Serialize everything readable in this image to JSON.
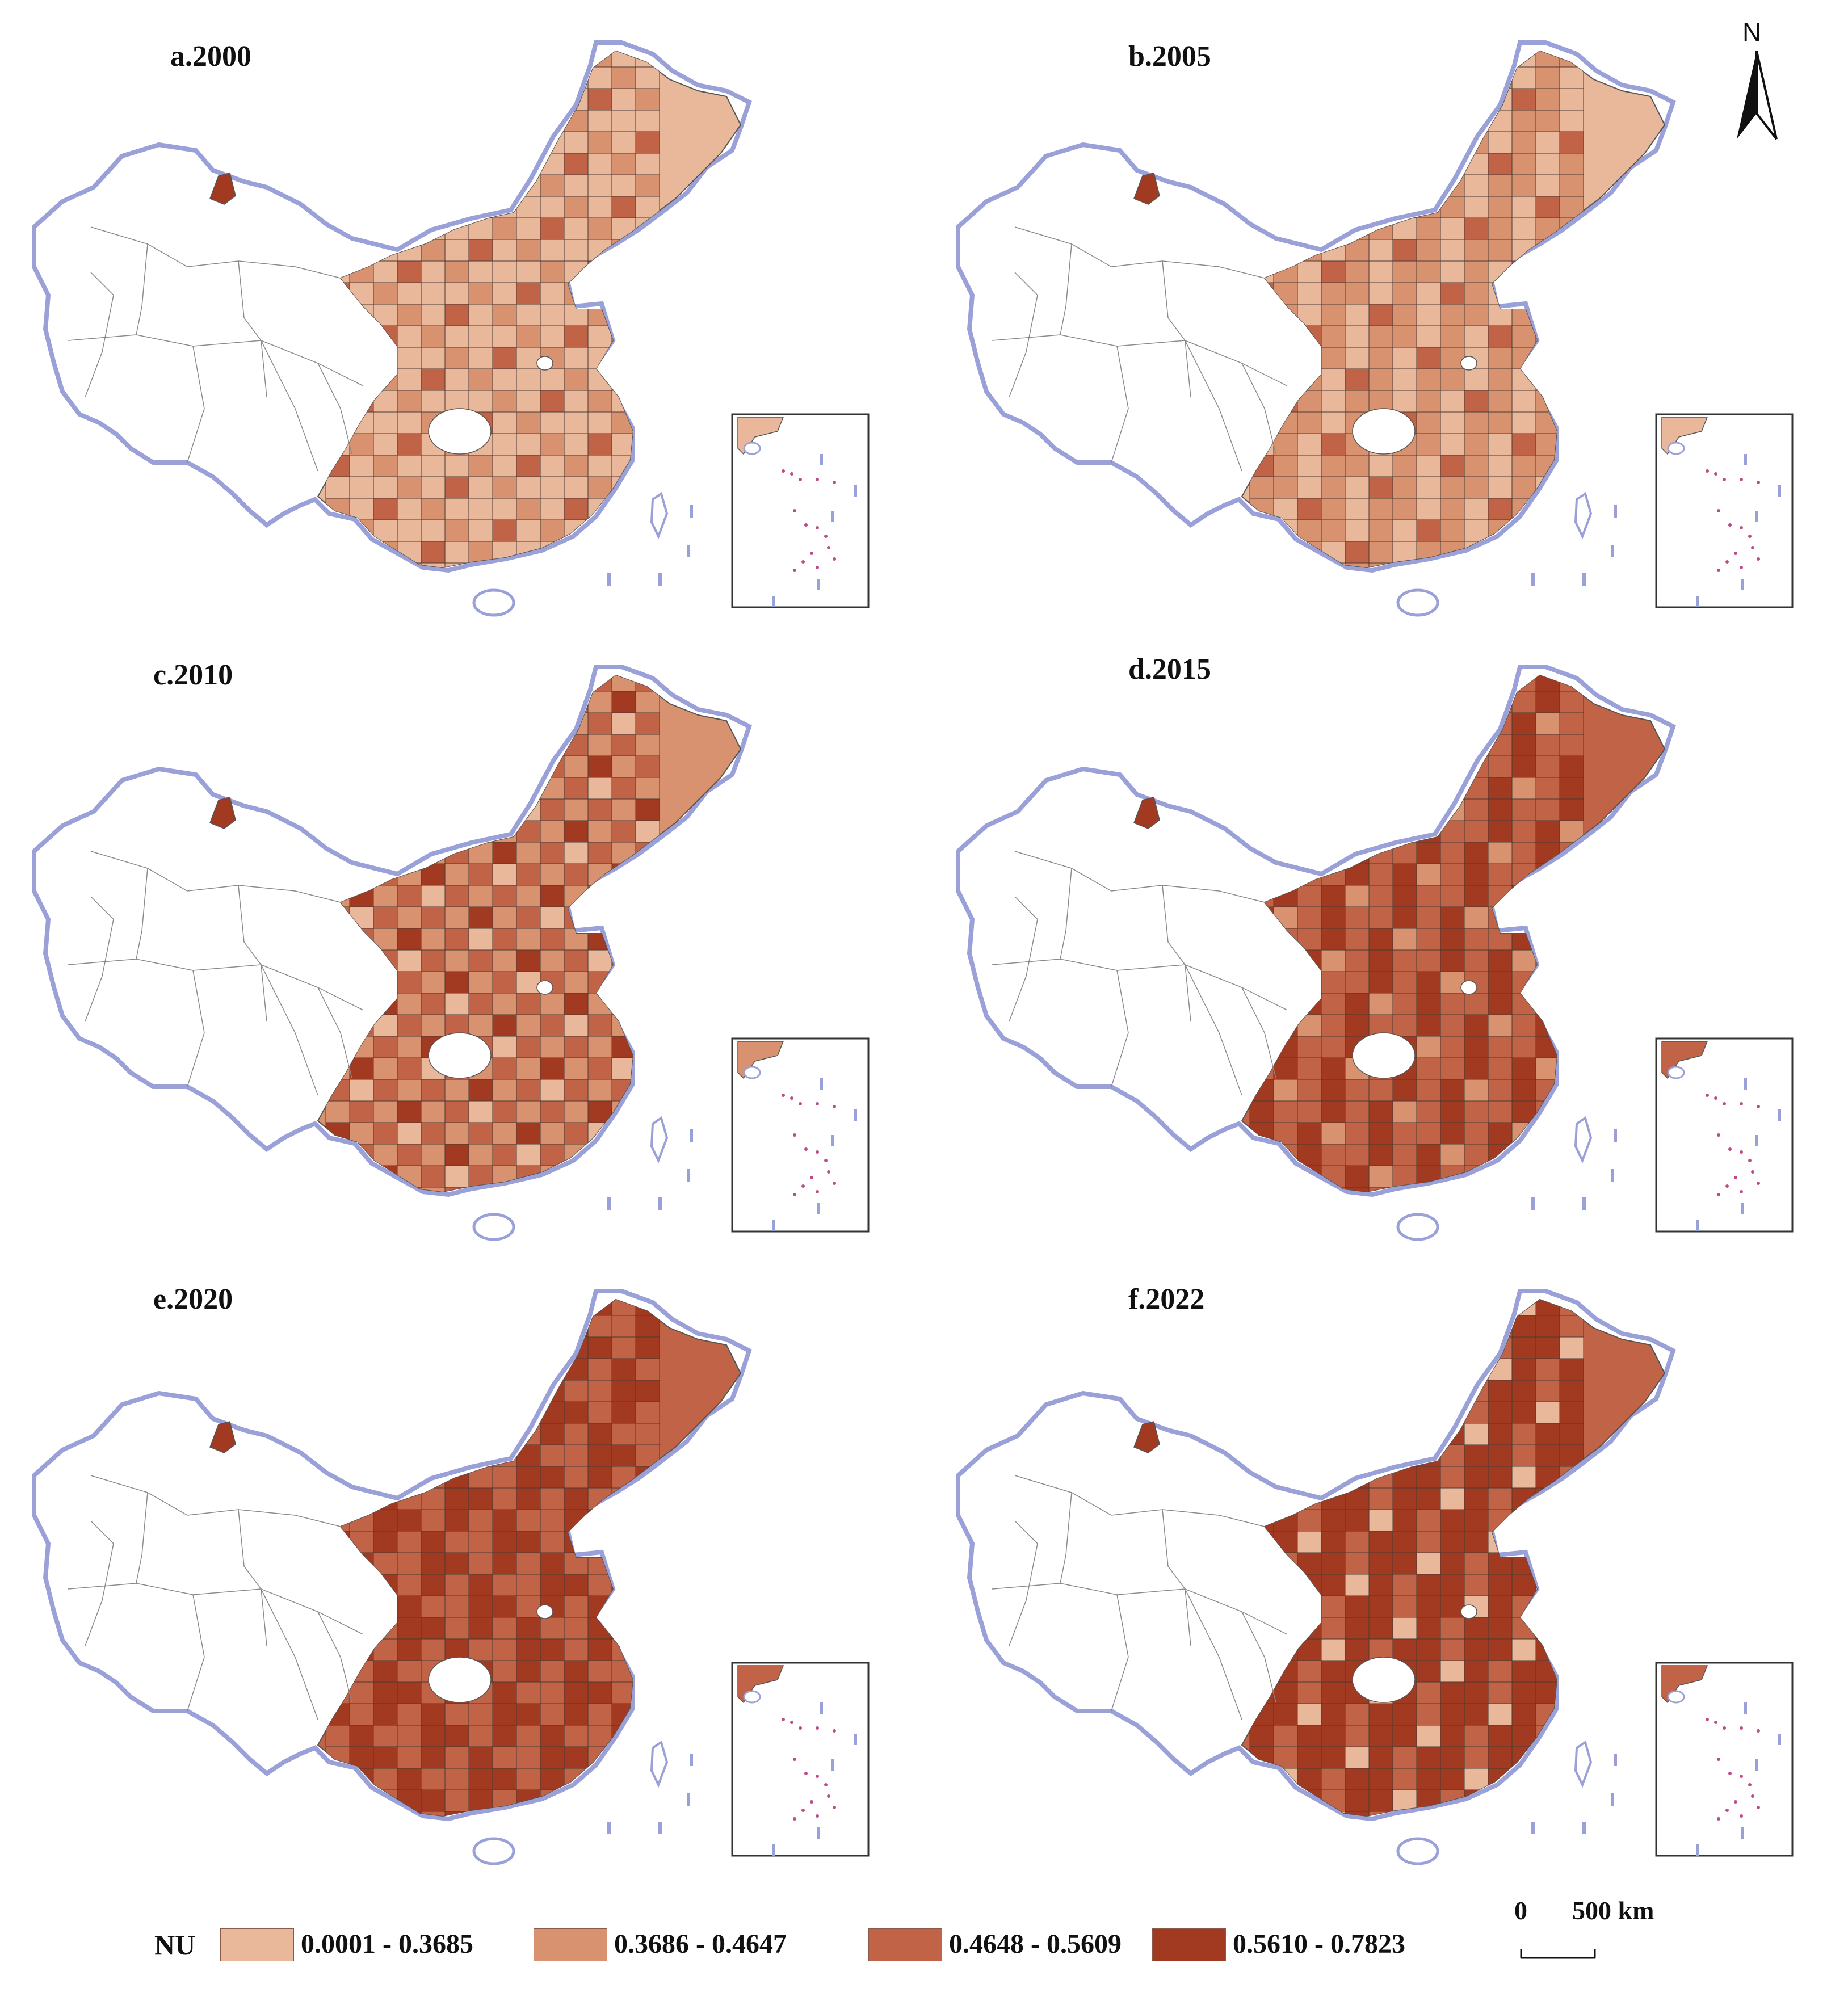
{
  "panels": [
    {
      "label": "a.2000",
      "level": 1
    },
    {
      "label": "b.2005",
      "level": 2
    },
    {
      "label": "c.2010",
      "level": 3
    },
    {
      "label": "d.2015",
      "level": 4
    },
    {
      "label": "e.2020",
      "level": 5
    },
    {
      "label": "f.2022",
      "level": 6
    }
  ],
  "legend": {
    "title": "NU",
    "classes": [
      {
        "range": "0.0001 - 0.3685",
        "color": "#e9b79a"
      },
      {
        "range": "0.3686 - 0.4647",
        "color": "#d8926f"
      },
      {
        "range": "0.4648 - 0.5609",
        "color": "#c06346"
      },
      {
        "range": "0.5610 - 0.7823",
        "color": "#a23a22"
      }
    ]
  },
  "north_arrow": {
    "label": "N"
  },
  "scale_bar": {
    "zero": "0",
    "distance": "500 km"
  },
  "colors": {
    "no_data": "#ffffff",
    "boundary": "#9aa0d8",
    "inner_lines": "#555555"
  }
}
